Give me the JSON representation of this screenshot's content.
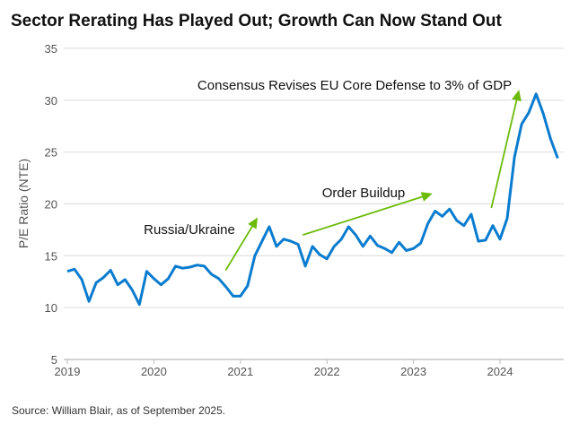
{
  "chart_data": {
    "type": "line",
    "title": "Sector Rerating Has Played Out; Growth Can Now Stand Out",
    "xlabel": "",
    "ylabel": "P/E Ratio  (NTE)",
    "ylim": [
      5,
      35
    ],
    "yticks": [
      "5",
      "10",
      "15",
      "20",
      "25",
      "30",
      "35"
    ],
    "xticks": [
      "2019",
      "2020",
      "2021",
      "2022",
      "2023",
      "2024"
    ],
    "grid": true,
    "line_color": "#0a7ccf",
    "arrow_color": "#6cbb0a",
    "series": [
      {
        "x": [
          "2019-01",
          "2019-02",
          "2019-03",
          "2019-04",
          "2019-05",
          "2019-06",
          "2019-07",
          "2019-08",
          "2019-09",
          "2019-10",
          "2019-11",
          "2019-12",
          "2020-01",
          "2020-02",
          "2020-03",
          "2020-04",
          "2020-05",
          "2020-06",
          "2020-07",
          "2020-08",
          "2020-09",
          "2020-10",
          "2020-11",
          "2020-12",
          "2021-01",
          "2021-02",
          "2021-03",
          "2021-04",
          "2021-05",
          "2021-06",
          "2021-07",
          "2021-08",
          "2021-09",
          "2021-10",
          "2021-11",
          "2021-12",
          "2022-01",
          "2022-02",
          "2022-03",
          "2022-04",
          "2022-05",
          "2022-06",
          "2022-07",
          "2022-08",
          "2022-09",
          "2022-10",
          "2022-11",
          "2022-12",
          "2023-01",
          "2023-02",
          "2023-03",
          "2023-04",
          "2023-05",
          "2023-06",
          "2023-07",
          "2023-08",
          "2023-09",
          "2023-10",
          "2023-11",
          "2023-12",
          "2024-01",
          "2024-02",
          "2024-03",
          "2024-04",
          "2024-05",
          "2024-06",
          "2024-07",
          "2024-08",
          "2024-09"
        ],
        "values": [
          13.5,
          13.7,
          12.7,
          10.6,
          12.4,
          12.9,
          13.6,
          12.2,
          12.7,
          11.7,
          10.3,
          13.5,
          12.8,
          12.2,
          12.8,
          14.0,
          13.8,
          13.9,
          14.1,
          14.0,
          13.2,
          12.8,
          12.0,
          11.1,
          11.1,
          12.1,
          15.0,
          16.4,
          17.8,
          15.9,
          16.6,
          16.4,
          16.1,
          14.0,
          15.9,
          15.1,
          14.7,
          15.9,
          16.6,
          17.8,
          17.0,
          15.9,
          16.9,
          16.0,
          15.7,
          15.3,
          16.3,
          15.5,
          15.7,
          16.2,
          18.1,
          19.3,
          18.8,
          19.5,
          18.4,
          17.9,
          19.0,
          16.4,
          16.5,
          17.9,
          16.6,
          18.6,
          24.5,
          27.7,
          28.8,
          30.6,
          28.7,
          26.3,
          24.4
        ]
      }
    ],
    "annotations": [
      {
        "text": "Russia/Ukraine",
        "arrow_from": [
          2020.83,
          13.6
        ],
        "arrow_to": [
          2021.2,
          18.7
        ]
      },
      {
        "text": "Order Buildup",
        "arrow_from": [
          2021.72,
          17.0
        ],
        "arrow_to": [
          2023.22,
          21.0
        ]
      },
      {
        "text": "Consensus Revises EU Core Defense to 3% of GDP",
        "arrow_from": [
          2023.9,
          19.6
        ],
        "arrow_to": [
          2024.22,
          31.0
        ]
      }
    ],
    "source": "Source: William Blair, as of September 2025."
  }
}
